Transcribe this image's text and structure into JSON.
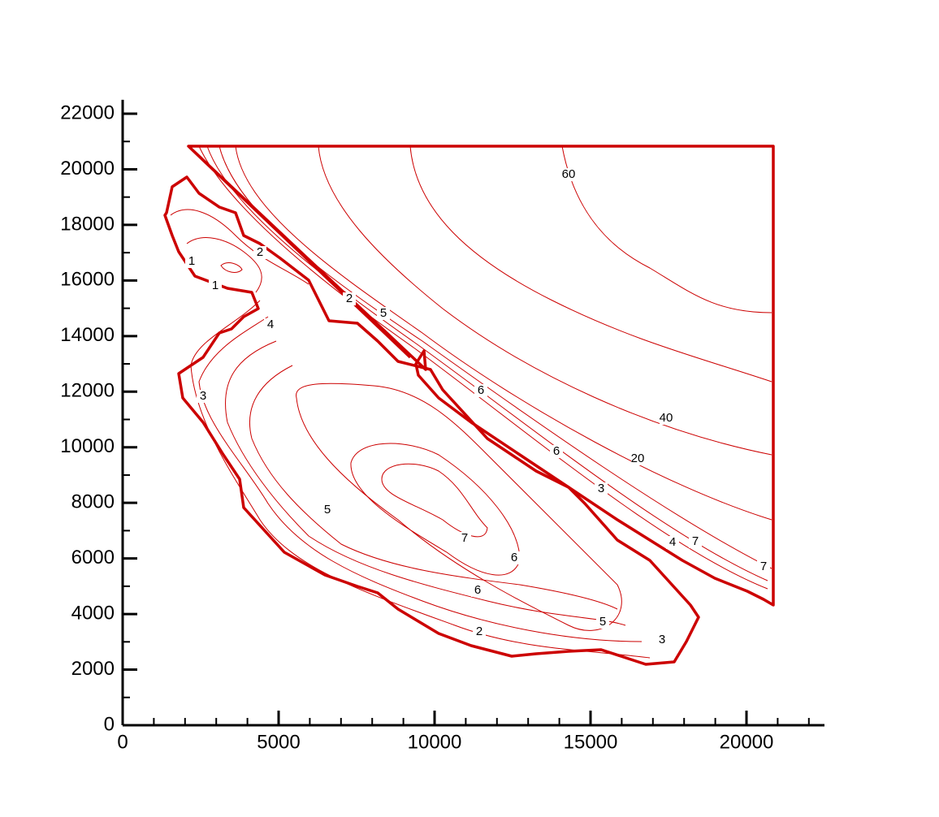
{
  "chart_data": {
    "type": "contour",
    "color": "#cc0000",
    "xlim": [
      0,
      22500
    ],
    "ylim": [
      0,
      22500
    ],
    "xticks": [
      0,
      5000,
      10000,
      15000,
      20000
    ],
    "yticks": [
      0,
      2000,
      4000,
      6000,
      8000,
      10000,
      12000,
      14000,
      16000,
      18000,
      20000,
      22000
    ],
    "minor_tick_step": 1000,
    "contour_labels": [
      {
        "value": 60,
        "x": 14297,
        "y": 19807
      },
      {
        "value": 40,
        "x": 17422,
        "y": 11043
      },
      {
        "value": 20,
        "x": 16510,
        "y": 9582
      },
      {
        "value": 7,
        "x": 20547,
        "y": 5697
      },
      {
        "value": 7,
        "x": 18359,
        "y": 6603
      },
      {
        "value": 4,
        "x": 17630,
        "y": 6573
      },
      {
        "value": 3,
        "x": 15339,
        "y": 8501
      },
      {
        "value": 6,
        "x": 13906,
        "y": 9845
      },
      {
        "value": 6,
        "x": 11484,
        "y": 12036
      },
      {
        "value": 5,
        "x": 8359,
        "y": 14812
      },
      {
        "value": 2,
        "x": 7266,
        "y": 15337
      },
      {
        "value": 2,
        "x": 4401,
        "y": 17003
      },
      {
        "value": 1,
        "x": 2214,
        "y": 16681
      },
      {
        "value": 1,
        "x": 2969,
        "y": 15805
      },
      {
        "value": 4,
        "x": 4740,
        "y": 14403
      },
      {
        "value": 3,
        "x": 2578,
        "y": 11832
      },
      {
        "value": 5,
        "x": 6563,
        "y": 7742
      },
      {
        "value": 7,
        "x": 10964,
        "y": 6719
      },
      {
        "value": 6,
        "x": 12552,
        "y": 6018
      },
      {
        "value": 6,
        "x": 11380,
        "y": 4850
      },
      {
        "value": 2,
        "x": 11432,
        "y": 3360
      },
      {
        "value": 5,
        "x": 15391,
        "y": 3710
      },
      {
        "value": 3,
        "x": 17292,
        "y": 3067
      }
    ]
  }
}
